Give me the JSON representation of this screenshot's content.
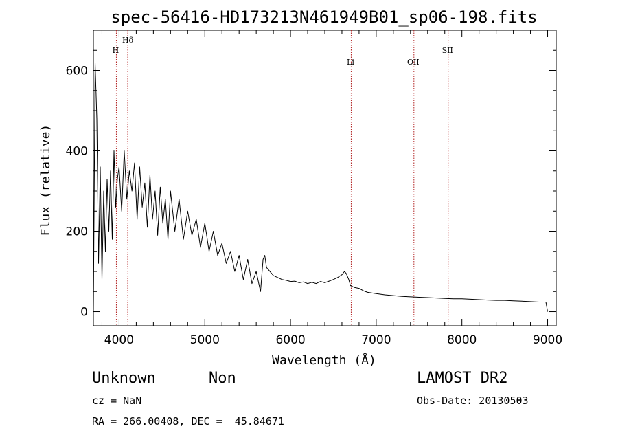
{
  "chart_data": {
    "type": "line",
    "title": "spec-56416-HD173213N461949B01_sp06-198.fits",
    "xlabel": "Wavelength (Å)",
    "ylabel": "Flux (relative)",
    "xlim": [
      3700,
      9100
    ],
    "ylim": [
      -35,
      700
    ],
    "x_ticks": [
      4000,
      5000,
      6000,
      7000,
      8000,
      9000
    ],
    "y_ticks": [
      0,
      200,
      400,
      600
    ],
    "grid": false,
    "series": [
      {
        "color": "#000000",
        "x": [
          3700,
          3720,
          3740,
          3760,
          3780,
          3800,
          3820,
          3840,
          3860,
          3880,
          3900,
          3920,
          3940,
          3960,
          3980,
          4000,
          4030,
          4060,
          4090,
          4120,
          4150,
          4180,
          4210,
          4240,
          4270,
          4300,
          4330,
          4360,
          4390,
          4420,
          4450,
          4480,
          4510,
          4540,
          4570,
          4600,
          4650,
          4700,
          4750,
          4800,
          4850,
          4900,
          4950,
          5000,
          5050,
          5100,
          5150,
          5200,
          5250,
          5300,
          5350,
          5400,
          5450,
          5500,
          5550,
          5600,
          5650,
          5680,
          5700,
          5720,
          5760,
          5800,
          5850,
          5900,
          5950,
          6000,
          6050,
          6100,
          6150,
          6200,
          6250,
          6300,
          6350,
          6400,
          6450,
          6500,
          6550,
          6600,
          6630,
          6650,
          6680,
          6700,
          6750,
          6800,
          6850,
          6900,
          7000,
          7100,
          7200,
          7300,
          7400,
          7500,
          7600,
          7700,
          7800,
          7900,
          8000,
          8100,
          8200,
          8300,
          8400,
          8500,
          8600,
          8700,
          8800,
          8900,
          8980,
          9000
        ],
        "y": [
          0,
          620,
          480,
          120,
          360,
          80,
          300,
          150,
          330,
          200,
          350,
          180,
          400,
          260,
          330,
          360,
          250,
          400,
          280,
          350,
          300,
          370,
          230,
          360,
          260,
          320,
          210,
          340,
          230,
          300,
          190,
          310,
          220,
          280,
          180,
          300,
          200,
          280,
          180,
          250,
          190,
          230,
          160,
          220,
          150,
          200,
          140,
          170,
          120,
          150,
          100,
          140,
          80,
          130,
          70,
          100,
          50,
          130,
          140,
          110,
          100,
          90,
          85,
          80,
          78,
          75,
          76,
          72,
          74,
          70,
          73,
          70,
          75,
          72,
          76,
          80,
          85,
          92,
          100,
          95,
          80,
          65,
          60,
          58,
          52,
          48,
          45,
          42,
          40,
          38,
          37,
          36,
          35,
          34,
          33,
          32,
          32,
          31,
          30,
          29,
          28,
          28,
          27,
          26,
          25,
          24,
          24,
          0
        ]
      }
    ],
    "annotations": [
      {
        "label": "H",
        "x": 3968
      },
      {
        "label": "Hδ",
        "x": 4101
      },
      {
        "label": "Li",
        "x": 6708
      },
      {
        "label": "OII",
        "x": 7440
      },
      {
        "label": "SII",
        "x": 7840
      }
    ]
  },
  "info": {
    "object_class": "Unknown",
    "object_subclass": "Non",
    "survey": "LAMOST DR2",
    "cz": "cz = NaN",
    "obs_date": "Obs-Date: 20130503",
    "radec": "RA = 266.00408, DEC =  45.84671"
  }
}
